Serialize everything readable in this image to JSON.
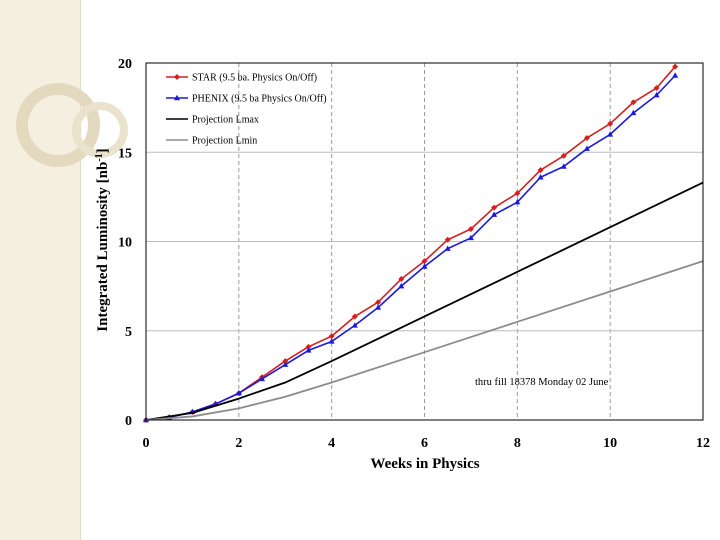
{
  "colors": {
    "star": "#d42020",
    "phenix": "#1a1adc",
    "lmax": "#000000",
    "lmin": "#8c8c8c",
    "background_band": "#f5efdf"
  },
  "chart_data": {
    "type": "line",
    "title": "",
    "xlabel": "Weeks in Physics",
    "ylabel": "Integrated Luminosity [nb",
    "ylabel_sup": "-1",
    "ylabel_end": "]",
    "xlim": [
      0,
      12
    ],
    "ylim": [
      0,
      20
    ],
    "xticks": [
      0,
      2,
      4,
      6,
      8,
      10,
      12
    ],
    "yticks": [
      0,
      5,
      10,
      15,
      20
    ],
    "grid": "vertical dashed at x ticks, horizontal solid at y ticks",
    "legend_position": "top-left",
    "annotation": "thru fill 18378  Monday   02 June",
    "series": [
      {
        "name": "STAR (9.5 ba. Physics On/Off)",
        "marker": "diamond",
        "color_key": "star",
        "x": [
          0,
          0.5,
          1,
          1.5,
          2,
          2.5,
          3,
          3.5,
          4,
          4.5,
          5,
          5.5,
          6,
          6.5,
          7,
          7.5,
          8,
          8.5,
          9,
          9.5,
          10,
          10.5,
          11,
          11.4
        ],
        "y": [
          0,
          0.15,
          0.45,
          0.9,
          1.5,
          2.4,
          3.3,
          4.1,
          4.7,
          5.8,
          6.6,
          7.9,
          8.9,
          10.1,
          10.7,
          11.9,
          12.7,
          14.0,
          14.8,
          15.8,
          16.6,
          17.8,
          18.6,
          19.8
        ]
      },
      {
        "name": "PHENIX (9.5 ba Physics On/Off)",
        "marker": "triangle",
        "color_key": "phenix",
        "x": [
          0,
          0.5,
          1,
          1.5,
          2,
          2.5,
          3,
          3.5,
          4,
          4.5,
          5,
          5.5,
          6,
          6.5,
          7,
          7.5,
          8,
          8.5,
          9,
          9.5,
          10,
          10.5,
          11,
          11.4
        ],
        "y": [
          0,
          0.15,
          0.45,
          0.9,
          1.5,
          2.3,
          3.1,
          3.9,
          4.4,
          5.3,
          6.3,
          7.5,
          8.6,
          9.6,
          10.2,
          11.5,
          12.2,
          13.6,
          14.2,
          15.2,
          16.0,
          17.2,
          18.2,
          19.3
        ]
      },
      {
        "name": "Projection Lmax",
        "marker": "none",
        "color_key": "lmax",
        "x": [
          0,
          1,
          2,
          3,
          4,
          6,
          8,
          10,
          12
        ],
        "y": [
          0,
          0.4,
          1.2,
          2.1,
          3.3,
          5.8,
          8.3,
          10.8,
          13.3
        ]
      },
      {
        "name": "Projection Lmin",
        "marker": "none",
        "color_key": "lmin",
        "x": [
          0,
          1,
          2,
          3,
          4,
          6,
          8,
          10,
          12
        ],
        "y": [
          0,
          0.2,
          0.65,
          1.3,
          2.1,
          3.8,
          5.5,
          7.2,
          8.9
        ]
      }
    ]
  }
}
